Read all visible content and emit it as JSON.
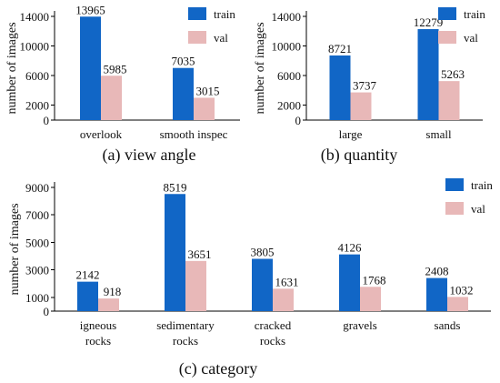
{
  "colors": {
    "train": "#1166c6",
    "val": "#e8b8b8"
  },
  "chart_data": [
    {
      "type": "bar",
      "caption": "(a) view angle",
      "ylabel": "number of images",
      "ylim": [
        0,
        14000
      ],
      "yticks": [
        0,
        2000,
        6000,
        10000,
        14000
      ],
      "categories": [
        "overlook",
        "smooth inspec"
      ],
      "series": [
        {
          "name": "train",
          "values": [
            13965,
            7035
          ]
        },
        {
          "name": "val",
          "values": [
            5985,
            3015
          ]
        }
      ],
      "legend": "top-right"
    },
    {
      "type": "bar",
      "caption": "(b) quantity",
      "ylabel": "number of images",
      "ylim": [
        0,
        14000
      ],
      "yticks": [
        0,
        2000,
        6000,
        10000,
        14000
      ],
      "categories": [
        "large",
        "small"
      ],
      "series": [
        {
          "name": "train",
          "values": [
            8721,
            12279
          ]
        },
        {
          "name": "val",
          "values": [
            3737,
            5263
          ]
        }
      ],
      "legend": "top-right"
    },
    {
      "type": "bar",
      "caption": "(c) category",
      "ylabel": "number of images",
      "ylim": [
        0,
        9000
      ],
      "yticks": [
        0,
        1000,
        3000,
        5000,
        7000,
        9000
      ],
      "categories": [
        [
          "igneous",
          "rocks"
        ],
        [
          "sedimentary",
          "rocks"
        ],
        [
          "cracked",
          "rocks"
        ],
        [
          "gravels"
        ],
        [
          "sands"
        ]
      ],
      "series": [
        {
          "name": "train",
          "values": [
            2142,
            8519,
            3805,
            4126,
            2408
          ]
        },
        {
          "name": "val",
          "values": [
            918,
            3651,
            1631,
            1768,
            1032
          ]
        }
      ],
      "legend": "top-right"
    }
  ]
}
